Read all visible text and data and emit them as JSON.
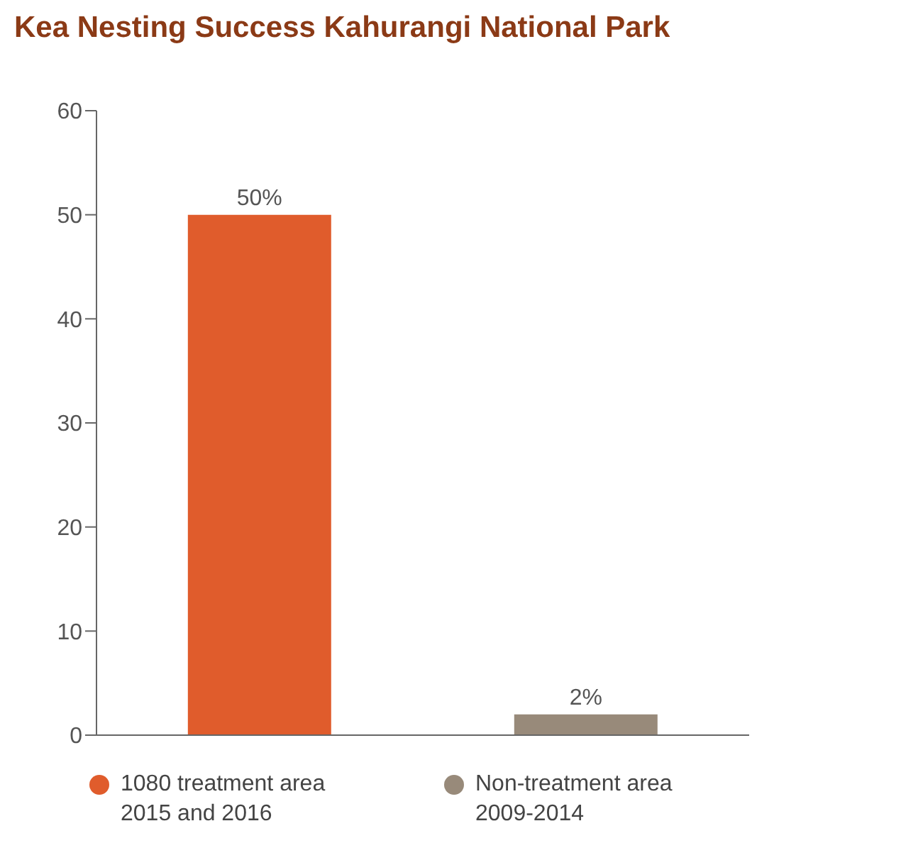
{
  "chart_data": {
    "type": "bar",
    "title": "Kea Nesting Success Kahurangi National Park",
    "categories": [
      null,
      null
    ],
    "series": [
      {
        "name": "1080 treatment area 2015 and 2016",
        "color": "#e05c2c",
        "values": [
          50,
          null
        ],
        "value_labels": [
          "50%",
          null
        ]
      },
      {
        "name": "Non-treatment area 2009-2014",
        "color": "#988a7a",
        "values": [
          null,
          2
        ],
        "value_labels": [
          null,
          "2%"
        ]
      }
    ],
    "ylim": [
      0,
      60
    ],
    "yticks": [
      0,
      10,
      20,
      30,
      40,
      50,
      60
    ],
    "grid": false,
    "legend": "bottom"
  }
}
